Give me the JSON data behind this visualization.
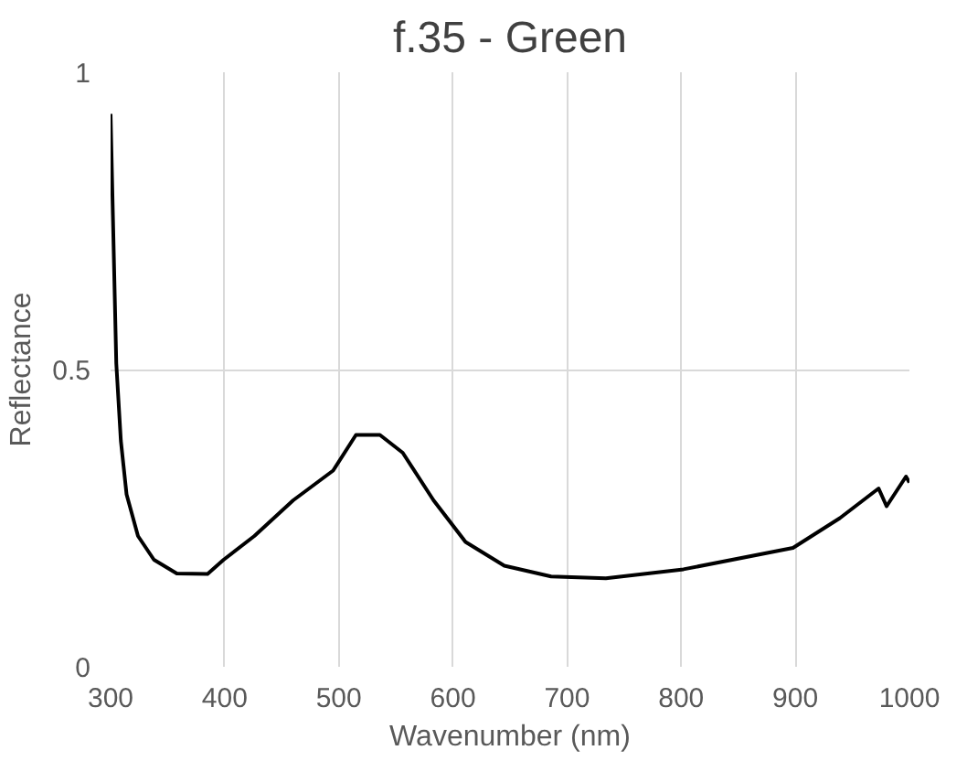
{
  "chart_data": {
    "type": "line",
    "title": "f.35 - Green",
    "xlabel": "Wavenumber (nm)",
    "ylabel": "Reflectance",
    "x": [
      300,
      302,
      305,
      309,
      314,
      324,
      338,
      358,
      385,
      399,
      426,
      460,
      495,
      515,
      536,
      556,
      583,
      611,
      645,
      686,
      734,
      802,
      898,
      939,
      973,
      980,
      997,
      1000
    ],
    "series": [
      {
        "color": "#000000",
        "values": [
          0.93,
          0.76,
          0.51,
          0.38,
          0.29,
          0.22,
          0.18,
          0.157,
          0.156,
          0.18,
          0.22,
          0.28,
          0.33,
          0.39,
          0.39,
          0.36,
          0.28,
          0.21,
          0.17,
          0.152,
          0.149,
          0.164,
          0.2,
          0.25,
          0.3,
          0.27,
          0.32,
          0.31
        ]
      }
    ],
    "xlim": [
      300,
      1000
    ],
    "ylim": [
      0,
      1
    ],
    "xticks": [
      300,
      400,
      500,
      600,
      700,
      800,
      900,
      1000
    ],
    "yticks": [
      0,
      0.5,
      1
    ],
    "grid": true,
    "marker": "none",
    "line_style": "solid"
  }
}
